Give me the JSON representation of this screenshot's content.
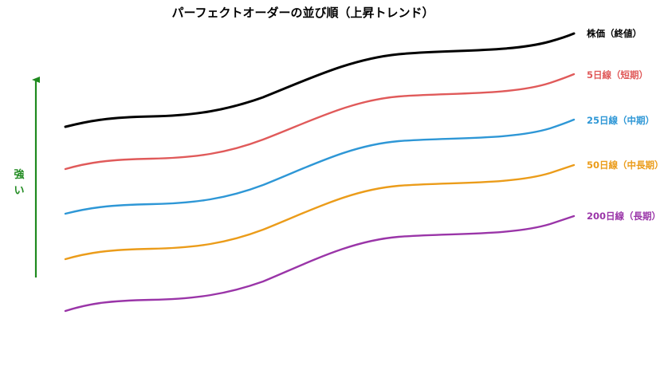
{
  "diagram": {
    "title": "パーフェクトオーダーの並び順（上昇トレンド）",
    "indicator": {
      "text_line1": "強",
      "text_line2": "い",
      "color": "#1f8a1f"
    },
    "lines": [
      {
        "label": "株価（終値）",
        "color": "#000000"
      },
      {
        "label": "5日線（短期）",
        "color": "#e05a5a"
      },
      {
        "label": "25日線（中期）",
        "color": "#2e97d6"
      },
      {
        "label": "50日線（中長期）",
        "color": "#eb9c1a"
      },
      {
        "label": "200日線（長期）",
        "color": "#9a35a8"
      }
    ]
  }
}
